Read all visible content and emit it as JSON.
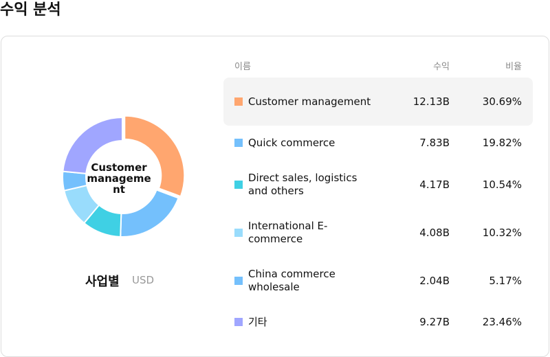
{
  "header": {
    "title": "수익 분석"
  },
  "chart_data": {
    "type": "donut",
    "center_label": "Customer management",
    "caption": "사업별",
    "unit": "USD",
    "categories": [
      "Customer management",
      "Quick commerce",
      "Direct sales, logistics and others",
      "International E-commerce",
      "China commerce wholesale",
      "기타"
    ],
    "values": [
      30.69,
      19.82,
      10.54,
      10.32,
      5.17,
      23.46
    ],
    "value_labels": [
      "30.69%",
      "19.82%",
      "10.54%",
      "10.32%",
      "5.17%",
      "23.46%"
    ],
    "colors": [
      "#ffa66f",
      "#74c0fc",
      "#3fd0e4",
      "#99dcfc",
      "#74c0fc",
      "#a0a6ff"
    ],
    "highlight": 0
  },
  "table": {
    "columns": [
      "이름",
      "수익",
      "비율"
    ],
    "revenue": [
      "12.13B",
      "7.83B",
      "4.17B",
      "4.08B",
      "2.04B",
      "9.27B"
    ]
  }
}
